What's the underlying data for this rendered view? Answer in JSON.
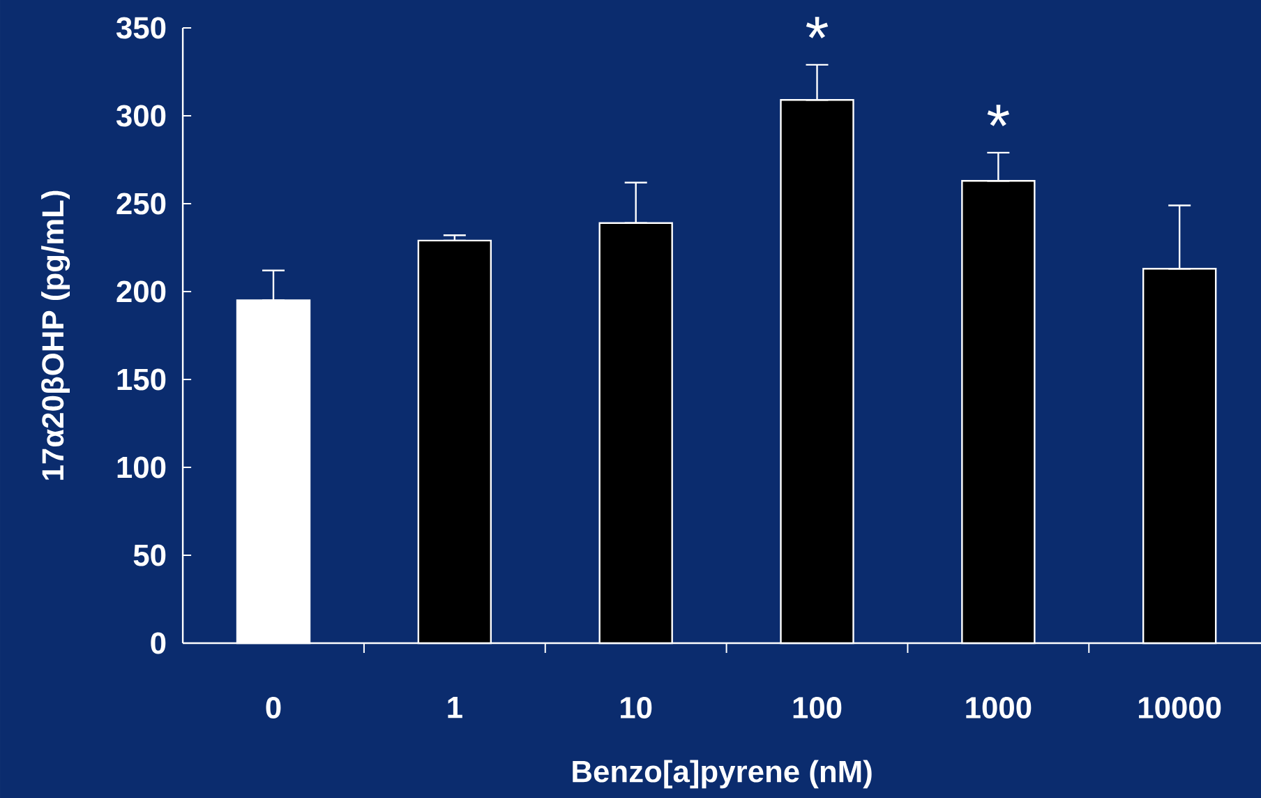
{
  "chart_data": {
    "type": "bar",
    "xlabel": "Benzo[a]pyrene (nM)",
    "ylabel": "17α20βOHP (pg/mL)",
    "categories": [
      "0",
      "1",
      "10",
      "100",
      "1000",
      "10000"
    ],
    "values": [
      195,
      229,
      239,
      309,
      263,
      213
    ],
    "errors": [
      [
        195,
        212
      ],
      [
        229,
        232
      ],
      [
        239,
        262
      ],
      [
        309,
        329
      ],
      [
        263,
        279
      ],
      [
        213,
        249
      ]
    ],
    "colors": [
      "#ffffff",
      "#000000",
      "#000000",
      "#000000",
      "#000000",
      "#000000"
    ],
    "ylim": [
      0,
      350
    ],
    "yticks": [
      0,
      50,
      100,
      150,
      200,
      250,
      300,
      350
    ],
    "annotations": [
      {
        "text": "*",
        "x": "100",
        "y": 329
      },
      {
        "text": "*",
        "x": "1000",
        "y": 279
      }
    ]
  }
}
